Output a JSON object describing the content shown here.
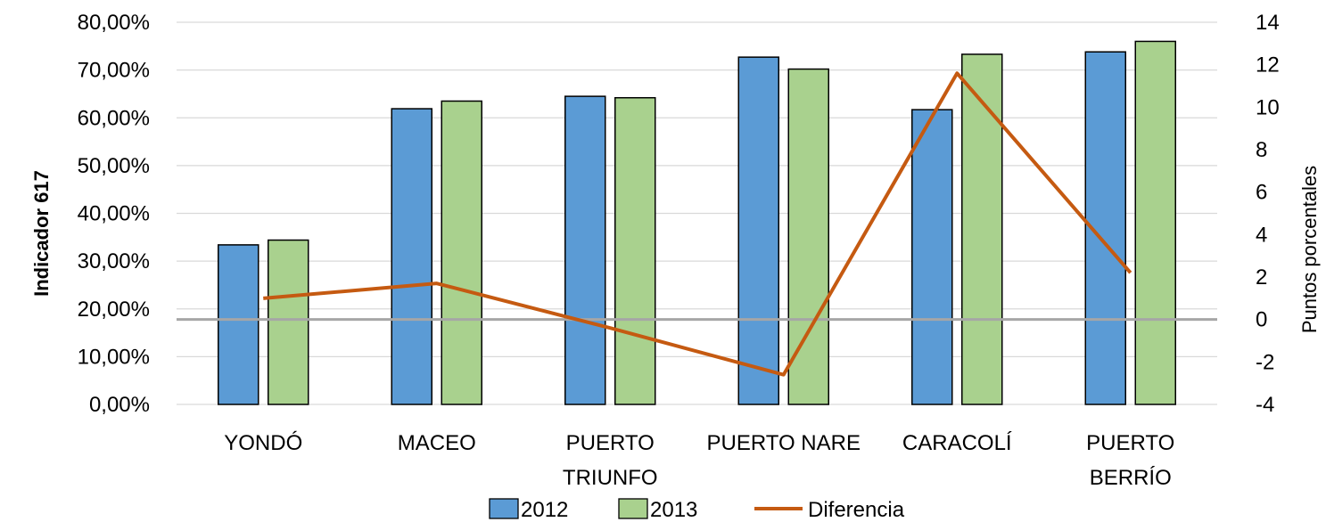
{
  "chart_data": {
    "type": "bar",
    "categories": [
      [
        "YONDÓ"
      ],
      [
        "MACEO"
      ],
      [
        "PUERTO",
        "TRIUNFO"
      ],
      [
        "PUERTO NARE"
      ],
      [
        "CARACOLÍ"
      ],
      [
        "PUERTO",
        "BERRÍO"
      ]
    ],
    "series": [
      {
        "name": "2012",
        "axis": "left",
        "type": "bar",
        "color": "#5b9bd5",
        "values": [
          33.4,
          61.9,
          64.5,
          72.7,
          61.7,
          73.8
        ]
      },
      {
        "name": "2013",
        "axis": "left",
        "type": "bar",
        "color": "#a9d18e",
        "values": [
          34.4,
          63.5,
          64.2,
          70.2,
          73.3,
          76.0
        ]
      },
      {
        "name": "Diferencia",
        "axis": "right",
        "type": "line",
        "color": "#c55a11",
        "values": [
          1.0,
          1.7,
          -0.4,
          -2.6,
          11.6,
          2.2
        ]
      }
    ],
    "ylabel": "Indicador 617",
    "y2label": "Puntos  porcentales",
    "ylim": [
      0,
      80
    ],
    "y2lim": [
      -4,
      14
    ],
    "yticks": [
      "0,00%",
      "10,00%",
      "20,00%",
      "30,00%",
      "40,00%",
      "50,00%",
      "60,00%",
      "70,00%",
      "80,00%"
    ],
    "y2ticks": [
      "-4",
      "-2",
      "0",
      "2",
      "4",
      "6",
      "8",
      "10",
      "12",
      "14"
    ],
    "grid": true,
    "zero_line_color": "#a6a6a6",
    "legend_position": "bottom"
  }
}
